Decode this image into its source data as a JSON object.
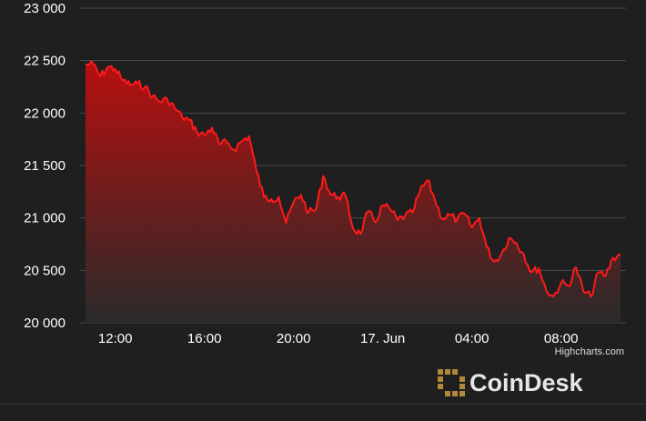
{
  "credit": "Highcharts.com",
  "brand": {
    "name": "CoinDesk",
    "logo_color": "#b0883a"
  },
  "colors": {
    "background": "#1f1f1f",
    "line": "#ff1a1a",
    "fill_top": "#b80f0f",
    "fill_bottom": "#2a2a2a",
    "grid": "#4a4a4a",
    "text": "#ffffff"
  },
  "chart_data": {
    "type": "area",
    "title": "",
    "xlabel": "",
    "ylabel": "",
    "grid": true,
    "legend": "none",
    "ylim": [
      20000,
      23000
    ],
    "xlim": [
      "2022-06-16 10:40",
      "2022-06-17 10:40"
    ],
    "y_ticks": [
      "20 000",
      "20 500",
      "21 000",
      "21 500",
      "22 000",
      "22 500",
      "23 000"
    ],
    "y_tick_values": [
      20000,
      20500,
      21000,
      21500,
      22000,
      22500,
      23000
    ],
    "x_ticks": [
      "12:00",
      "16:00",
      "20:00",
      "17. Jun",
      "04:00",
      "08:00"
    ],
    "x_tick_times": [
      "2022-06-16 12:00",
      "2022-06-16 16:00",
      "2022-06-16 20:00",
      "2022-06-17 00:00",
      "2022-06-17 04:00",
      "2022-06-17 08:00"
    ],
    "series": [
      {
        "x": [
          "2022-06-16 10:40",
          "2022-06-16 11:00",
          "2022-06-16 11:20",
          "2022-06-16 11:40",
          "2022-06-16 12:00",
          "2022-06-16 12:20",
          "2022-06-16 12:40",
          "2022-06-16 13:00",
          "2022-06-16 13:20",
          "2022-06-16 13:40",
          "2022-06-16 14:00",
          "2022-06-16 14:20",
          "2022-06-16 14:40",
          "2022-06-16 15:00",
          "2022-06-16 15:20",
          "2022-06-16 15:40",
          "2022-06-16 16:00",
          "2022-06-16 16:20",
          "2022-06-16 16:40",
          "2022-06-16 17:00",
          "2022-06-16 17:20",
          "2022-06-16 17:40",
          "2022-06-16 18:00",
          "2022-06-16 18:20",
          "2022-06-16 18:40",
          "2022-06-16 19:00",
          "2022-06-16 19:20",
          "2022-06-16 19:40",
          "2022-06-16 20:00",
          "2022-06-16 20:20",
          "2022-06-16 20:40",
          "2022-06-16 21:00",
          "2022-06-16 21:20",
          "2022-06-16 21:40",
          "2022-06-16 22:00",
          "2022-06-16 22:20",
          "2022-06-16 22:40",
          "2022-06-16 23:00",
          "2022-06-16 23:20",
          "2022-06-16 23:40",
          "2022-06-17 00:00",
          "2022-06-17 00:20",
          "2022-06-17 00:40",
          "2022-06-17 01:00",
          "2022-06-17 01:20",
          "2022-06-17 01:40",
          "2022-06-17 02:00",
          "2022-06-17 02:20",
          "2022-06-17 02:40",
          "2022-06-17 03:00",
          "2022-06-17 03:20",
          "2022-06-17 03:40",
          "2022-06-17 04:00",
          "2022-06-17 04:20",
          "2022-06-17 04:40",
          "2022-06-17 05:00",
          "2022-06-17 05:20",
          "2022-06-17 05:40",
          "2022-06-17 06:00",
          "2022-06-17 06:20",
          "2022-06-17 06:40",
          "2022-06-17 07:00",
          "2022-06-17 07:20",
          "2022-06-17 07:40",
          "2022-06-17 08:00",
          "2022-06-17 08:20",
          "2022-06-17 08:40",
          "2022-06-17 09:00",
          "2022-06-17 09:20",
          "2022-06-17 09:40",
          "2022-06-17 10:00",
          "2022-06-17 10:20",
          "2022-06-17 10:40"
        ],
        "y": [
          22460,
          22470,
          22350,
          22440,
          22420,
          22310,
          22270,
          22280,
          22250,
          22160,
          22110,
          22130,
          22050,
          21960,
          21930,
          21820,
          21790,
          21860,
          21700,
          21720,
          21650,
          21730,
          21780,
          21450,
          21200,
          21180,
          21200,
          20950,
          21150,
          21220,
          21050,
          21080,
          21400,
          21220,
          21200,
          21210,
          20900,
          20850,
          21060,
          20960,
          21120,
          21080,
          20980,
          21020,
          21050,
          21250,
          21360,
          21180,
          20990,
          21030,
          20980,
          21040,
          20910,
          21000,
          20720,
          20580,
          20660,
          20810,
          20760,
          20650,
          20480,
          20520,
          20310,
          20250,
          20380,
          20350,
          20530,
          20300,
          20250,
          20480,
          20450,
          20620,
          20650
        ]
      }
    ]
  }
}
